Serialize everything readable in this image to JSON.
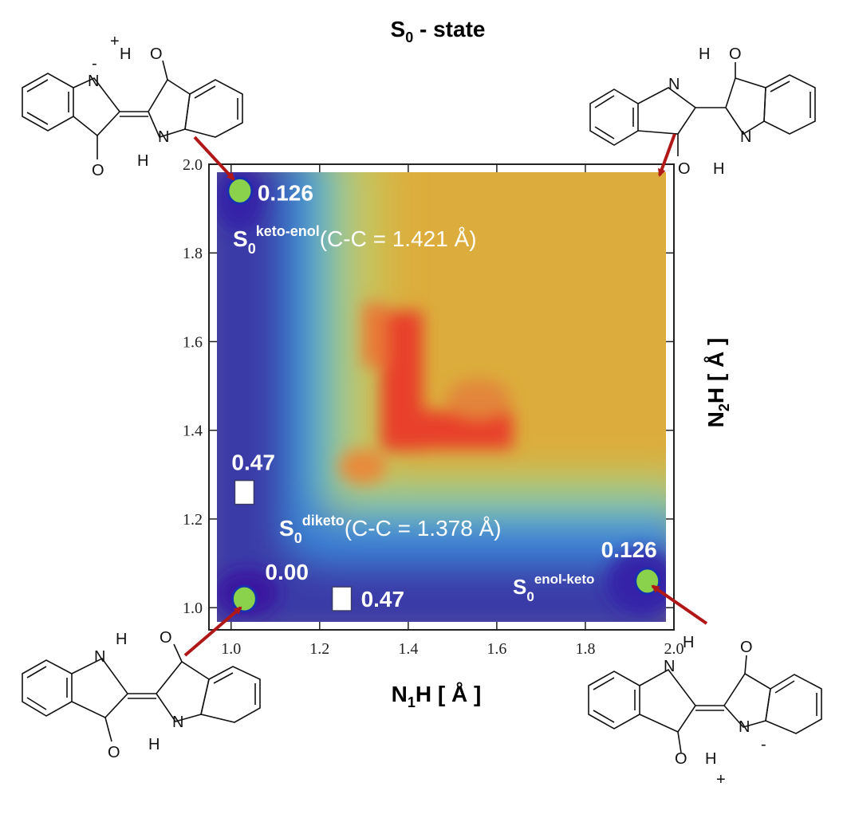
{
  "title": {
    "base": "S",
    "sub": "0",
    "rest": " - state"
  },
  "chart_data": {
    "type": "heatmap",
    "x": {
      "label_base": "N",
      "label_sub": "1",
      "label_rest": "H [ Å ]",
      "range": [
        0.95,
        2.0
      ],
      "ticks": [
        "1.0",
        "1.2",
        "1.4",
        "1.6",
        "1.8",
        "2.0"
      ]
    },
    "y": {
      "label_base": "N",
      "label_sub": "2",
      "label_rest": "H [ Å ]",
      "range": [
        0.95,
        2.0
      ],
      "ticks": [
        "1.0",
        "1.2",
        "1.4",
        "1.6",
        "1.8",
        "2.0"
      ]
    },
    "colormap": [
      "#3b2aa8",
      "#2f6fd8",
      "#5fc7a6",
      "#d6c84a",
      "#dba33a",
      "#e3322a"
    ],
    "minima": [
      {
        "id": "keto-enol",
        "x": 1.02,
        "y": 1.94,
        "energy": "0.126",
        "state_base": "S",
        "state_sub": "0",
        "state_sup": "keto-enol",
        "note": "(C-C = 1.421 Å)",
        "color": "#8bd24c"
      },
      {
        "id": "diketo",
        "x": 1.03,
        "y": 1.02,
        "energy": "0.00",
        "state_base": "S",
        "state_sub": "0",
        "state_sup": "diketo",
        "note": "(C-C = 1.378 Å)",
        "color": "#8bd24c"
      },
      {
        "id": "enol-keto",
        "x": 1.94,
        "y": 1.06,
        "energy": "0.126",
        "state_base": "S",
        "state_sub": "0",
        "state_sup": "enol-keto",
        "note": "",
        "color": "#8bd24c"
      }
    ],
    "saddles": [
      {
        "id": "ts-left",
        "x": 1.03,
        "y": 1.26,
        "energy": "0.47"
      },
      {
        "id": "ts-bottom",
        "x": 1.25,
        "y": 1.02,
        "energy": "0.47"
      }
    ]
  },
  "molecules": {
    "top_left": {
      "atoms": [
        "N",
        "O",
        "H",
        "N",
        "O",
        "H"
      ],
      "charges": [
        "+",
        "-"
      ]
    },
    "top_right": {
      "atoms": [
        "N",
        "O",
        "H",
        "N",
        "O",
        "H"
      ]
    },
    "bottom_left": {
      "atoms": [
        "N",
        "H",
        "O",
        "N",
        "H",
        "O"
      ]
    },
    "bottom_right": {
      "atoms": [
        "N",
        "H",
        "O",
        "N",
        "O",
        "H"
      ],
      "charges": [
        "+",
        "-"
      ]
    }
  },
  "colors": {
    "arrow": "#b01818",
    "frame": "#222222",
    "label_white": "#ffffff",
    "marker_stroke": "#1a2fb0"
  }
}
